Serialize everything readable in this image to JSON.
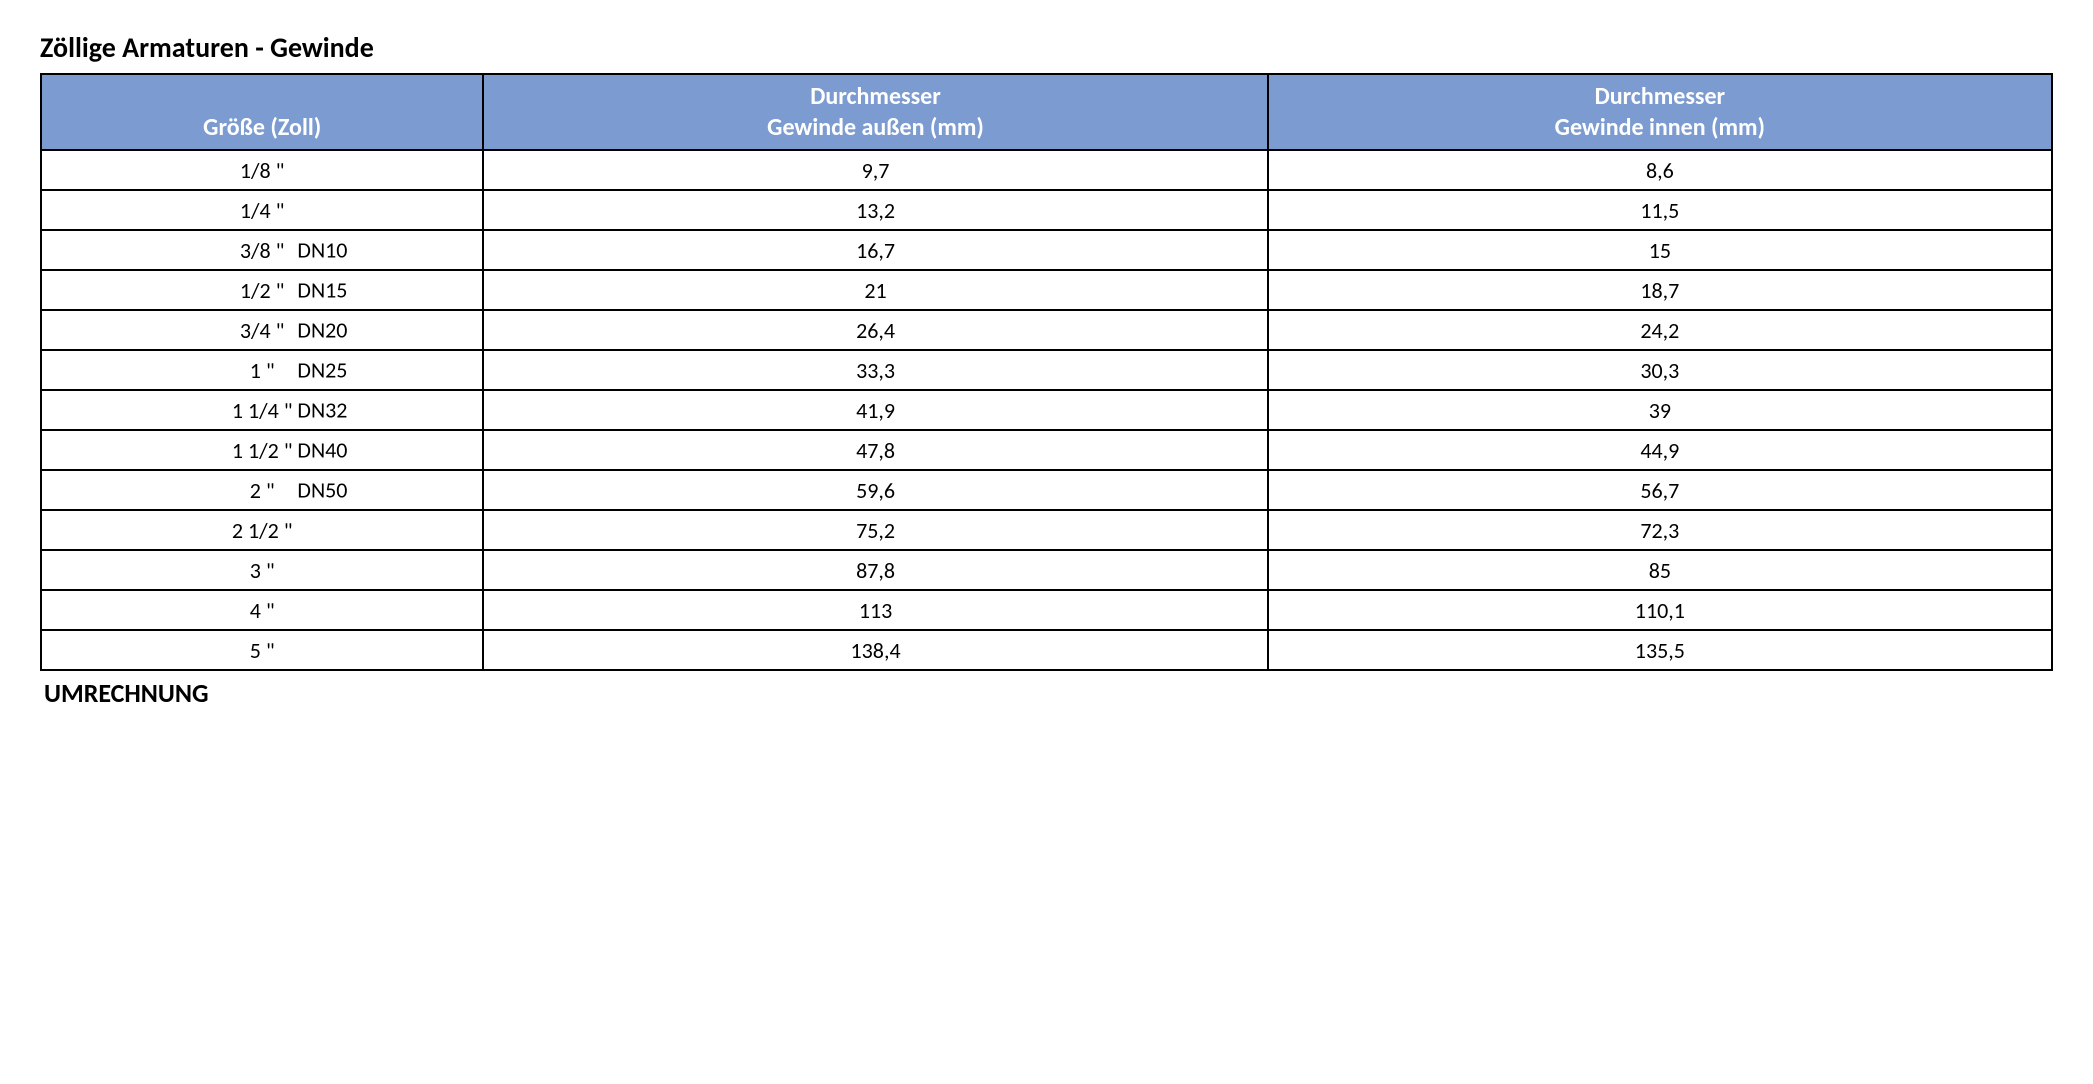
{
  "title": "Zöllige Armaturen - Gewinde",
  "footer": "UMRECHNUNG",
  "table": {
    "type": "table",
    "header_bg_color": "#7b9bd1",
    "header_text_color": "#ffffff",
    "border_color": "#000000",
    "cell_bg_color": "#ffffff",
    "text_color": "#000000",
    "title_fontsize": 28,
    "header_fontsize": 24,
    "cell_fontsize": 22,
    "columns": [
      {
        "key": "size",
        "line1": "",
        "line2": "Größe (Zoll)",
        "width_pct": 22
      },
      {
        "key": "outer",
        "line1": "Durchmesser",
        "line2": "Gewinde außen (mm)",
        "width_pct": 39
      },
      {
        "key": "inner",
        "line1": "Durchmesser",
        "line2": "Gewinde innen (mm)",
        "width_pct": 39
      }
    ],
    "rows": [
      {
        "size_inch": "1/8 \"",
        "size_dn": "",
        "outer": "9,7",
        "inner": "8,6"
      },
      {
        "size_inch": "1/4 \"",
        "size_dn": "",
        "outer": "13,2",
        "inner": "11,5"
      },
      {
        "size_inch": "3/8 \"",
        "size_dn": "DN10",
        "outer": "16,7",
        "inner": "15"
      },
      {
        "size_inch": "1/2 \"",
        "size_dn": "DN15",
        "outer": "21",
        "inner": "18,7"
      },
      {
        "size_inch": "3/4 \"",
        "size_dn": "DN20",
        "outer": "26,4",
        "inner": "24,2"
      },
      {
        "size_inch": "1 \"",
        "size_dn": "DN25",
        "outer": "33,3",
        "inner": "30,3"
      },
      {
        "size_inch": "1 1/4 \"",
        "size_dn": "DN32",
        "outer": "41,9",
        "inner": "39"
      },
      {
        "size_inch": "1 1/2 \"",
        "size_dn": "DN40",
        "outer": "47,8",
        "inner": "44,9"
      },
      {
        "size_inch": "2 \"",
        "size_dn": "DN50",
        "outer": "59,6",
        "inner": "56,7"
      },
      {
        "size_inch": "2 1/2 \"",
        "size_dn": "",
        "outer": "75,2",
        "inner": "72,3"
      },
      {
        "size_inch": "3 \"",
        "size_dn": "",
        "outer": "87,8",
        "inner": "85"
      },
      {
        "size_inch": "4 \"",
        "size_dn": "",
        "outer": "113",
        "inner": "110,1"
      },
      {
        "size_inch": "5 \"",
        "size_dn": "",
        "outer": "138,4",
        "inner": "135,5"
      }
    ]
  }
}
